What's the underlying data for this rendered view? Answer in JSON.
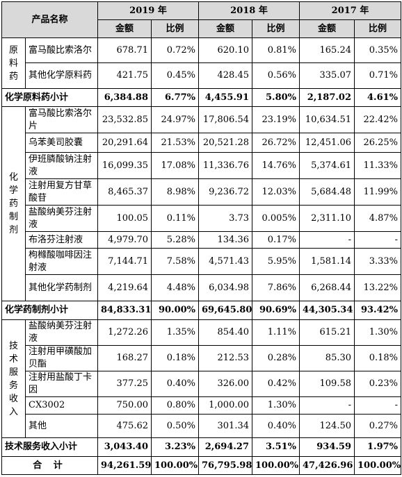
{
  "header": {
    "product_name": "产品名称",
    "years": [
      "2019 年",
      "2018 年",
      "2017 年"
    ],
    "amount_label": "金额",
    "ratio_label": "比例"
  },
  "groups": [
    {
      "category": "原料药",
      "rows": [
        {
          "name": "富马酸比索洛尔",
          "v": [
            "678.71",
            "0.72%",
            "620.10",
            "0.81%",
            "165.24",
            "0.35%"
          ]
        },
        {
          "name": "其他化学原料药",
          "v": [
            "421.75",
            "0.45%",
            "428.45",
            "0.56%",
            "335.07",
            "0.71%"
          ]
        }
      ],
      "subtotal": {
        "name": "化学原料药小计",
        "v": [
          "6,384.88",
          "6.77%",
          "4,455.91",
          "5.80%",
          "2,187.02",
          "4.61%"
        ]
      }
    },
    {
      "category": "化学药制剂",
      "rows": [
        {
          "name": "富马酸比索洛尔片",
          "v": [
            "23,532.85",
            "24.97%",
            "17,806.54",
            "23.19%",
            "10,634.51",
            "22.42%"
          ]
        },
        {
          "name": "乌苯美司胶囊",
          "v": [
            "20,291.64",
            "21.53%",
            "20,521.28",
            "26.72%",
            "12,451.06",
            "26.25%"
          ]
        },
        {
          "name": "伊班膦酸钠注射液",
          "v": [
            "16,099.35",
            "17.08%",
            "11,336.76",
            "14.76%",
            "5,374.61",
            "11.33%"
          ]
        },
        {
          "name": "注射用复方甘草酸苷",
          "v": [
            "8,465.37",
            "8.98%",
            "9,236.72",
            "12.03%",
            "5,684.48",
            "11.99%"
          ]
        },
        {
          "name": "盐酸纳美芬注射液",
          "v": [
            "100.05",
            "0.11%",
            "3.73",
            "0.005%",
            "2,311.10",
            "4.87%"
          ]
        },
        {
          "name": "布洛芬注射液",
          "v": [
            "4,979.70",
            "5.28%",
            "134.36",
            "0.17%",
            "-",
            "-"
          ]
        },
        {
          "name": "枸橼酸咖啡因注射液",
          "v": [
            "7,144.71",
            "7.58%",
            "4,571.43",
            "5.95%",
            "1,581.14",
            "3.33%"
          ]
        },
        {
          "name": "其他化学药制剂",
          "v": [
            "4,219.64",
            "4.48%",
            "6,034.98",
            "7.86%",
            "6,268.44",
            "13.22%"
          ]
        }
      ],
      "subtotal": {
        "name": "化学药制剂小计",
        "v": [
          "84,833.31",
          "90.00%",
          "69,645.80",
          "90.69%",
          "44,305.34",
          "93.42%"
        ]
      }
    },
    {
      "category": "技术服务收入",
      "rows": [
        {
          "name": "盐酸纳美芬注射液",
          "v": [
            "1,272.26",
            "1.35%",
            "854.40",
            "1.11%",
            "615.21",
            "1.30%"
          ]
        },
        {
          "name": "注射用甲磺酸加贝酯",
          "v": [
            "168.27",
            "0.18%",
            "212.53",
            "0.28%",
            "85.30",
            "0.18%"
          ]
        },
        {
          "name": "注射用盐酸丁卡因",
          "v": [
            "377.25",
            "0.40%",
            "326.00",
            "0.42%",
            "109.58",
            "0.23%"
          ]
        },
        {
          "name": "CX3002",
          "v": [
            "750.00",
            "0.80%",
            "1,000.00",
            "1.30%",
            "-",
            "-"
          ]
        },
        {
          "name": "其他",
          "v": [
            "475.62",
            "0.50%",
            "301.34",
            "0.40%",
            "124.50",
            "0.27%"
          ]
        }
      ],
      "subtotal": {
        "name": "技术服务收入小计",
        "v": [
          "3,043.40",
          "3.23%",
          "2,694.27",
          "3.51%",
          "934.59",
          "1.97%"
        ]
      }
    }
  ],
  "total": {
    "name": "合 计",
    "v": [
      "94,261.59",
      "100.00%",
      "76,795.98",
      "100.00%",
      "47,426.96",
      "100.00%"
    ]
  }
}
